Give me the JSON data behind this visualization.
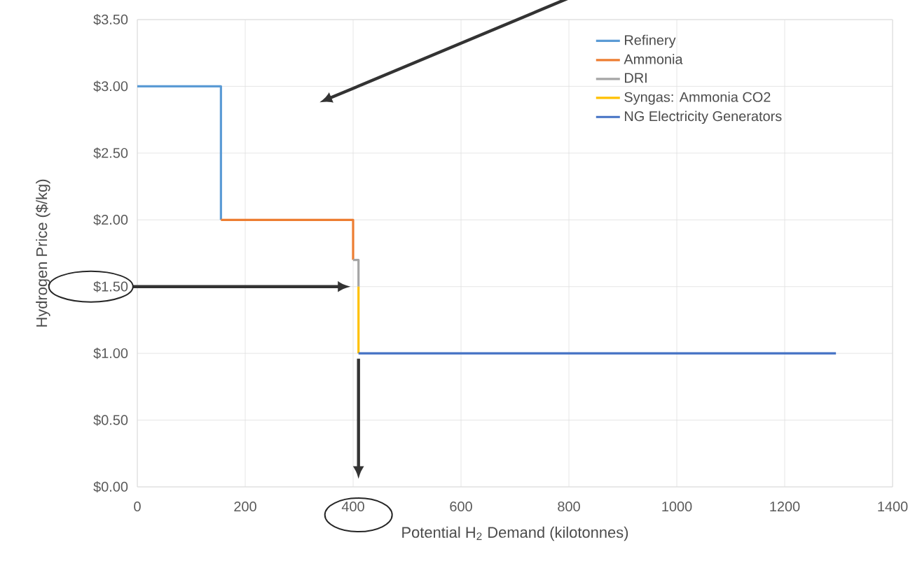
{
  "chart_data": {
    "type": "line",
    "xlabel": "Potential H$_{2}$ Demand (kilotonnes)",
    "ylabel": "Hydrogen Price ($/kg)",
    "series": [
      {
        "name": "Refinery",
        "color": "#5b9bd5",
        "x": [
          0,
          155,
          155
        ],
        "values": [
          3.0,
          3.0,
          2.0
        ]
      },
      {
        "name": "Ammonia",
        "color": "#ed7d31",
        "x": [
          155,
          400,
          400
        ],
        "values": [
          2.0,
          2.0,
          1.7
        ]
      },
      {
        "name": "DRI",
        "color": "#a5a5a5",
        "x": [
          400,
          410,
          410
        ],
        "values": [
          1.7,
          1.7,
          1.5
        ]
      },
      {
        "name": "Syngas: Ammonia CO2",
        "color": "#ffc000",
        "x": [
          410,
          410
        ],
        "values": [
          1.5,
          1.0
        ]
      },
      {
        "name": "NG Electricity Generators",
        "color": "#4472c4",
        "x": [
          410,
          1295
        ],
        "values": [
          1.0,
          1.0
        ]
      }
    ],
    "xlim": [
      0,
      1400
    ],
    "xticks": [
      0,
      200,
      400,
      600,
      800,
      1000,
      1200,
      1400
    ],
    "ylim": [
      0,
      3.5
    ],
    "yticks": [
      {
        "value": 0,
        "label": "$0.00"
      },
      {
        "value": 0.5,
        "label": "$0.50"
      },
      {
        "value": 1,
        "label": "$1.00"
      },
      {
        "value": 1.5,
        "label": "$1.50"
      },
      {
        "value": 2,
        "label": "$2.00"
      },
      {
        "value": 2.5,
        "label": "$2.50"
      },
      {
        "value": 3,
        "label": "$3.00"
      },
      {
        "value": 3.5,
        "label": "$3.50"
      }
    ],
    "grid": true,
    "legend": "top right",
    "marker": "none",
    "line_style": "solid"
  }
}
